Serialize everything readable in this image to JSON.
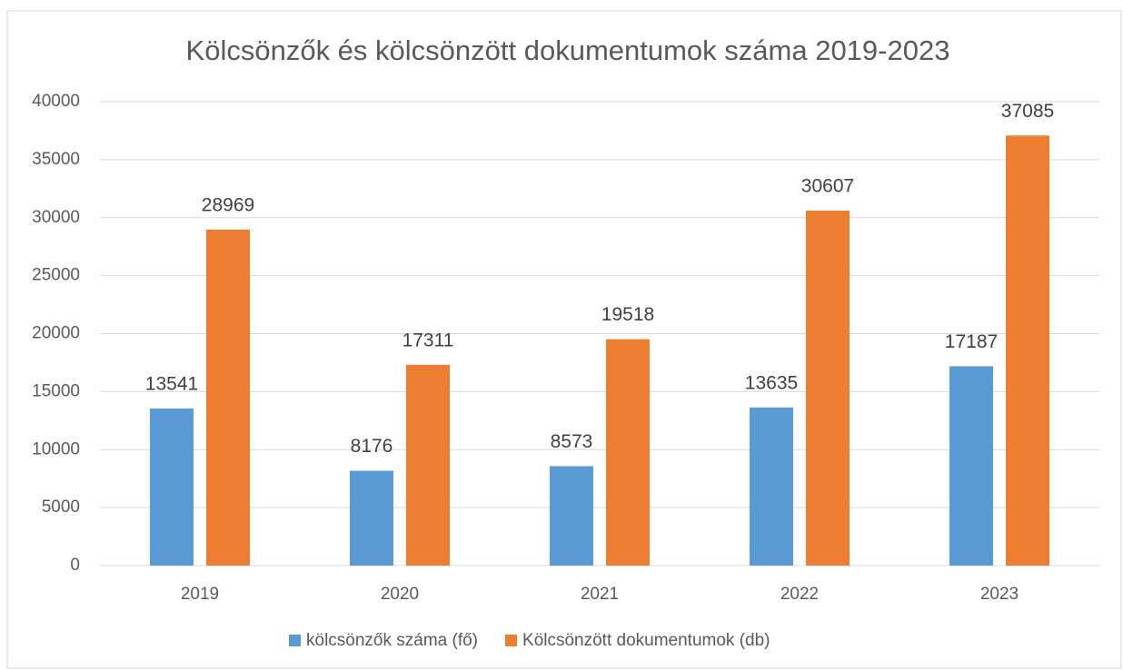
{
  "chart_data": {
    "type": "bar",
    "title": "Kölcsönzők és kölcsönzött dokumentumok száma 2019-2023",
    "categories": [
      "2019",
      "2020",
      "2021",
      "2022",
      "2023"
    ],
    "series": [
      {
        "name": "kölcsönzők száma (fő)",
        "color": "#5b9bd5",
        "values": [
          13541,
          8176,
          8573,
          13635,
          17187
        ]
      },
      {
        "name": "Kölcsönzött dokumentumok (db)",
        "color": "#ed7d31",
        "values": [
          28969,
          17311,
          19518,
          30607,
          37085
        ]
      }
    ],
    "ylim": [
      0,
      40000
    ],
    "yticks": [
      0,
      5000,
      10000,
      15000,
      20000,
      25000,
      30000,
      35000,
      40000
    ],
    "grid": true,
    "legend": "bottom"
  }
}
